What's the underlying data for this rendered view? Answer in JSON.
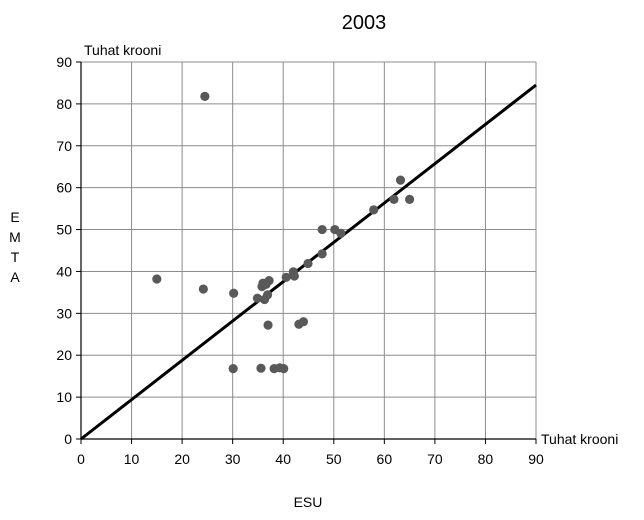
{
  "chart_data": {
    "type": "scatter",
    "title": "2003",
    "xlabel": "ESU",
    "ylabel": "EMTA",
    "x_unit_label": "Tuhat krooni",
    "y_unit_label": "Tuhat krooni",
    "xlim": [
      0,
      90
    ],
    "ylim": [
      0,
      90
    ],
    "x_ticks": [
      0,
      10,
      20,
      30,
      40,
      50,
      60,
      70,
      80,
      90
    ],
    "y_ticks": [
      0,
      10,
      20,
      30,
      40,
      50,
      60,
      70,
      80,
      90
    ],
    "grid": true,
    "point_color": "#595959",
    "line_color": "#000000",
    "reference_line": {
      "from": [
        0,
        0
      ],
      "to": [
        90,
        84.5
      ]
    },
    "points": [
      {
        "x": 24.5,
        "y": 81.8
      },
      {
        "x": 15.0,
        "y": 38.2
      },
      {
        "x": 24.2,
        "y": 35.8
      },
      {
        "x": 30.2,
        "y": 34.8
      },
      {
        "x": 30.1,
        "y": 16.8
      },
      {
        "x": 35.6,
        "y": 16.9
      },
      {
        "x": 38.2,
        "y": 16.8
      },
      {
        "x": 39.3,
        "y": 17.0
      },
      {
        "x": 40.1,
        "y": 16.8
      },
      {
        "x": 34.9,
        "y": 33.6
      },
      {
        "x": 35.8,
        "y": 36.4
      },
      {
        "x": 36.0,
        "y": 37.2
      },
      {
        "x": 36.3,
        "y": 33.3
      },
      {
        "x": 36.6,
        "y": 36.9
      },
      {
        "x": 36.9,
        "y": 34.4
      },
      {
        "x": 37.0,
        "y": 27.2
      },
      {
        "x": 37.2,
        "y": 37.8
      },
      {
        "x": 40.6,
        "y": 38.6
      },
      {
        "x": 42.0,
        "y": 39.9
      },
      {
        "x": 42.2,
        "y": 38.9
      },
      {
        "x": 43.1,
        "y": 27.4
      },
      {
        "x": 44.0,
        "y": 28.0
      },
      {
        "x": 44.9,
        "y": 41.9
      },
      {
        "x": 47.7,
        "y": 50.0
      },
      {
        "x": 47.7,
        "y": 44.2
      },
      {
        "x": 50.2,
        "y": 50.0
      },
      {
        "x": 51.4,
        "y": 49.1
      },
      {
        "x": 57.9,
        "y": 54.7
      },
      {
        "x": 61.9,
        "y": 57.2
      },
      {
        "x": 63.2,
        "y": 61.8
      },
      {
        "x": 65.0,
        "y": 57.2
      }
    ]
  }
}
